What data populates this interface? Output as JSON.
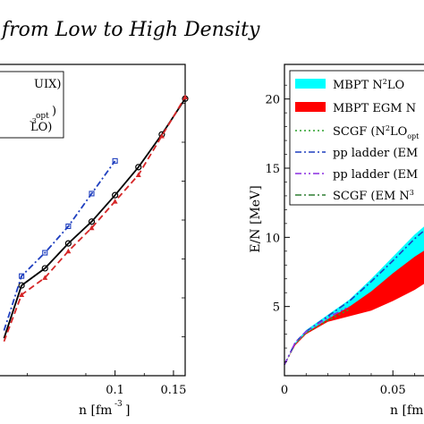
{
  "figure_title": "from Low to High Density",
  "chart_data": [
    {
      "type": "line",
      "xlabel": "n [fm",
      "xlabel_exp": "-3",
      "xlabel_close": "]",
      "x_ticks": [
        "0.1",
        "0.15"
      ],
      "x_tick_values": [
        0.1,
        0.15
      ],
      "xlim": [
        0.0,
        0.16
      ],
      "ylim": [
        0,
        20
      ],
      "legend_position": "top-left",
      "legend_fragments": [
        "UIX)",
        "opt",
        ")",
        "-3",
        "LO)"
      ],
      "series": [
        {
          "color": "#000000",
          "style": "solid",
          "marker": "circle",
          "x": [
            0.005,
            0.02,
            0.04,
            0.06,
            0.08,
            0.1,
            0.12,
            0.14,
            0.16
          ],
          "y": [
            2.4,
            5.8,
            6.9,
            8.5,
            9.9,
            11.6,
            13.4,
            15.5,
            17.8
          ]
        },
        {
          "color": "#d62728",
          "style": "dashed",
          "marker": "triangle",
          "x": [
            0.005,
            0.02,
            0.04,
            0.06,
            0.08,
            0.1,
            0.12,
            0.14,
            0.16
          ],
          "y": [
            2.2,
            5.2,
            6.3,
            8.0,
            9.5,
            11.2,
            12.9,
            15.4,
            17.9
          ]
        },
        {
          "color": "#1f3fbf",
          "style": "dashdot",
          "marker": "square",
          "x": [
            0.005,
            0.02,
            0.04,
            0.06,
            0.08,
            0.1
          ],
          "y": [
            2.9,
            6.4,
            7.9,
            9.6,
            11.7,
            13.8
          ]
        }
      ]
    },
    {
      "type": "area",
      "xlabel": "n [fm",
      "ylabel": "E/N [MeV]",
      "x_ticks": [
        "0",
        "0.05"
      ],
      "x_tick_values": [
        0,
        0.05
      ],
      "y_ticks": [
        "5",
        "10",
        "15",
        "20"
      ],
      "y_tick_values": [
        5,
        10,
        15,
        20
      ],
      "xlim": [
        0,
        0.066
      ],
      "ylim": [
        0,
        22.5
      ],
      "legend_position": "top-left",
      "legend": [
        {
          "label": "MBPT N",
          "sup": "2",
          "tail": "LO",
          "color": "#00ffff",
          "kind": "band"
        },
        {
          "label": "MBPT EGM N",
          "sup": "",
          "tail": "",
          "color": "#ff0000",
          "kind": "band"
        },
        {
          "label": "SCGF (N",
          "sup": "2",
          "tail": "LO",
          "sub": "opt",
          "color": "#2ca02c",
          "kind": "dotted"
        },
        {
          "label": "pp ladder (EM",
          "sup": "",
          "tail": "",
          "color": "#1f3fbf",
          "kind": "dashdot"
        },
        {
          "label": "pp ladder (EM",
          "sup": "",
          "tail": "",
          "color": "#8a2be2",
          "kind": "dashdotdot"
        },
        {
          "label": "SCGF (EM N",
          "sup": "3",
          "tail": "",
          "color": "#2e7d32",
          "kind": "dashdot"
        }
      ],
      "bands": [
        {
          "color": "#ff0000",
          "x": [
            0.0,
            0.005,
            0.01,
            0.02,
            0.03,
            0.04,
            0.05,
            0.06,
            0.066
          ],
          "lower": [
            0.8,
            2.2,
            3.0,
            3.9,
            4.3,
            4.7,
            5.4,
            6.2,
            6.8
          ],
          "upper": [
            0.8,
            2.3,
            3.2,
            4.2,
            5.2,
            6.6,
            8.1,
            9.5,
            10.4
          ]
        },
        {
          "color": "#00ffff",
          "x": [
            0.0,
            0.005,
            0.01,
            0.02,
            0.03,
            0.04,
            0.05,
            0.06,
            0.066
          ],
          "lower": [
            0.8,
            2.3,
            3.1,
            4.1,
            5.0,
            6.1,
            7.4,
            8.6,
            9.2
          ],
          "upper": [
            0.8,
            2.4,
            3.3,
            4.4,
            5.5,
            7.0,
            8.6,
            10.2,
            11.0
          ]
        }
      ],
      "lines": [
        {
          "color": "#1f3fbf",
          "style": "dashdot",
          "x": [
            0.0,
            0.005,
            0.01,
            0.02,
            0.03,
            0.04,
            0.05,
            0.06,
            0.066
          ],
          "y": [
            0.8,
            2.4,
            3.2,
            4.3,
            5.4,
            6.8,
            8.3,
            9.9,
            10.7
          ]
        },
        {
          "color": "#2ca02c",
          "style": "dotted",
          "x": [
            0.0,
            0.005,
            0.01,
            0.02,
            0.03
          ],
          "y": [
            0.8,
            2.3,
            3.1,
            4.0,
            4.8
          ]
        },
        {
          "color": "#8a2be2",
          "style": "dashdotdot",
          "x": [
            0.0,
            0.005,
            0.01,
            0.02,
            0.03
          ],
          "y": [
            0.8,
            2.4,
            3.2,
            4.2,
            5.0
          ]
        }
      ]
    }
  ]
}
